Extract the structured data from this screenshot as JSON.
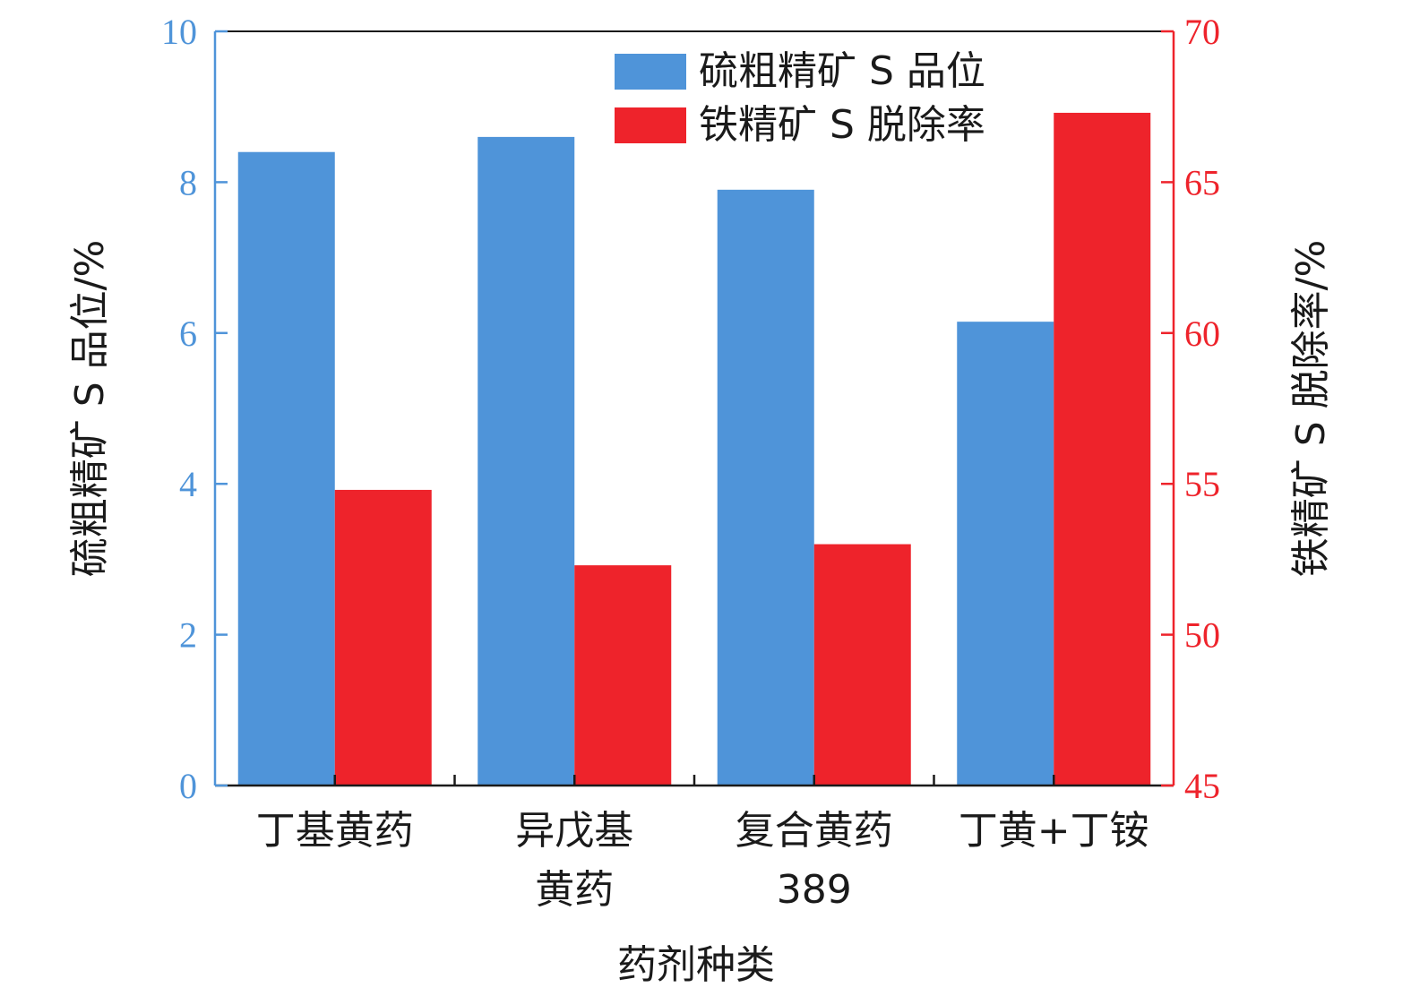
{
  "chart_data": {
    "type": "bar",
    "categories": [
      [
        "丁基黄药"
      ],
      [
        "异戊基",
        "黄药"
      ],
      [
        "复合黄药",
        "389"
      ],
      [
        "丁黄+丁铵"
      ]
    ],
    "xlabel": "药剂种类",
    "ylabel_left": "硫粗精矿 S 品位/%",
    "ylabel_right": "铁精矿 S 脱除率/%",
    "ylim_left": [
      0,
      10
    ],
    "ylim_right": [
      45,
      70
    ],
    "yticks_left": [
      0,
      2,
      4,
      6,
      8,
      10
    ],
    "yticks_right": [
      45,
      50,
      55,
      60,
      65,
      70
    ],
    "series": [
      {
        "name": "硫粗精矿 S 品位",
        "axis": "left",
        "color": "#4f94d9",
        "values": [
          8.4,
          8.6,
          7.9,
          6.15
        ]
      },
      {
        "name": "铁精矿 S 脱除率",
        "axis": "right",
        "color": "#ee232b",
        "values": [
          54.8,
          52.3,
          53.0,
          67.3
        ]
      }
    ],
    "legend_position": "top-right",
    "grid": false,
    "left_axis_color": "#4f94d9",
    "right_axis_color": "#ee232b"
  }
}
